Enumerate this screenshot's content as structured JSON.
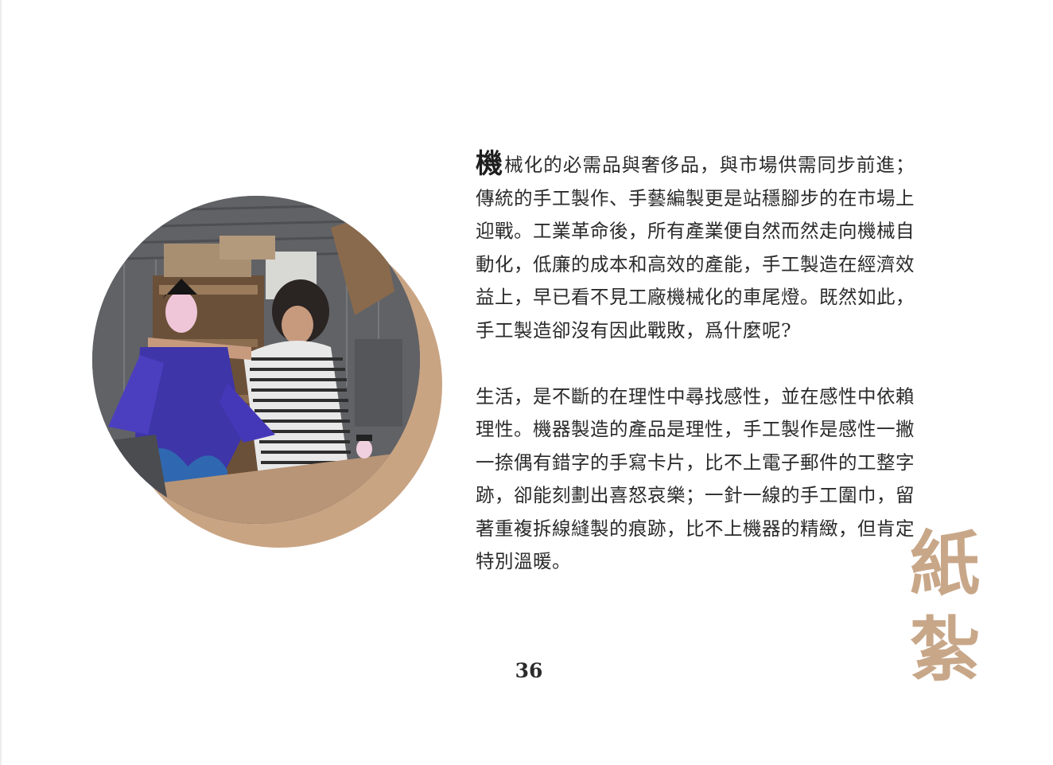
{
  "page": {
    "dropcap": "機",
    "paragraph1_rest": "械化的必需品與奢侈品，與市場供需同步前進；傳統的手工製作、手藝編製更是站穩腳步的在市場上迎戰。工業革命後，所有產業便自然而然走向機械自動化，低廉的成本和高效的產能，手工製造在經濟效益上，早已看不見工廠機械化的車尾燈。既然如此，手工製造卻沒有因此戰敗，爲什麼呢?",
    "paragraph2": "生活，是不斷的在理性中尋找感性，並在感性中依賴理性。機器製造的產品是理性，手工製作是感性一撇一捺偶有錯字的手寫卡片，比不上電子郵件的工整字跡，卻能刻劃出喜怒哀樂；一針一線的手工圍巾，留著重複拆線縫製的痕跡，比不上機器的精緻，但肯定特別溫暖。",
    "page_number": "36",
    "side_title": [
      "紙",
      "紮"
    ]
  },
  "colors": {
    "accent_tan": "#c9a483",
    "title_tan": "#c8a789",
    "text": "#2b2b2b"
  }
}
